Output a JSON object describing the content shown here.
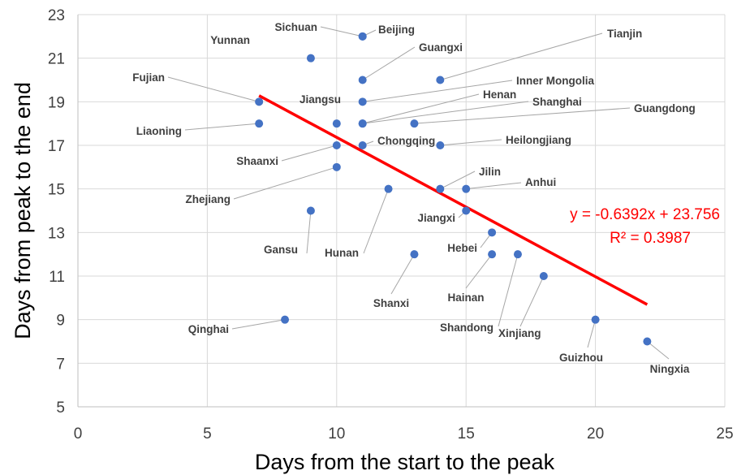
{
  "chart_data": {
    "type": "scatter",
    "xlabel": "Days from the start to the peak",
    "ylabel": "Days from peak to the end",
    "xlim": [
      0,
      25
    ],
    "ylim": [
      5,
      23
    ],
    "x_ticks": [
      "0",
      "5",
      "10",
      "15",
      "20",
      "25"
    ],
    "y_ticks": [
      "5",
      "7",
      "9",
      "11",
      "13",
      "15",
      "17",
      "19",
      "21",
      "23"
    ],
    "grid": true,
    "colors": {
      "points": "#4472c4",
      "trendline": "#ff0000"
    },
    "points": [
      {
        "label": "Sichuan",
        "x": 11,
        "y": 22
      },
      {
        "label": "Beijing",
        "x": 11,
        "y": 22
      },
      {
        "label": "Yunnan",
        "x": 9,
        "y": 21
      },
      {
        "label": "Tianjin",
        "x": 14,
        "y": 20
      },
      {
        "label": "Guangxi",
        "x": 11,
        "y": 20
      },
      {
        "label": "Fujian",
        "x": 7,
        "y": 19
      },
      {
        "label": "Inner Mongolia",
        "x": 11,
        "y": 19
      },
      {
        "label": "Jiangsu",
        "x": 10,
        "y": 18
      },
      {
        "label": "Henan",
        "x": 11,
        "y": 18
      },
      {
        "label": "Shanghai",
        "x": 11,
        "y": 18
      },
      {
        "label": "Guangdong",
        "x": 13,
        "y": 18
      },
      {
        "label": "Liaoning",
        "x": 7,
        "y": 18
      },
      {
        "label": "Shaanxi",
        "x": 10,
        "y": 17
      },
      {
        "label": "Chongqing",
        "x": 11,
        "y": 17
      },
      {
        "label": "Heilongjiang",
        "x": 14,
        "y": 17
      },
      {
        "label": "Zhejiang",
        "x": 10,
        "y": 16
      },
      {
        "label": "Jilin",
        "x": 14,
        "y": 15
      },
      {
        "label": "Anhui",
        "x": 15,
        "y": 15
      },
      {
        "label": "Hunan",
        "x": 12,
        "y": 15
      },
      {
        "label": "Gansu",
        "x": 9,
        "y": 14
      },
      {
        "label": "Jiangxi",
        "x": 15,
        "y": 14
      },
      {
        "label": "Hebei",
        "x": 16,
        "y": 13
      },
      {
        "label": "Shanxi",
        "x": 13,
        "y": 12
      },
      {
        "label": "Hainan",
        "x": 16,
        "y": 12
      },
      {
        "label": "Shandong",
        "x": 17,
        "y": 12
      },
      {
        "label": "Xinjiang",
        "x": 18,
        "y": 11
      },
      {
        "label": "Qinghai",
        "x": 8,
        "y": 9
      },
      {
        "label": "Guizhou",
        "x": 20,
        "y": 9
      },
      {
        "label": "Ningxia",
        "x": 22,
        "y": 8
      }
    ],
    "trendline": {
      "type": "linear",
      "slope": -0.6392,
      "intercept": 23.756,
      "x_range": [
        7,
        22
      ],
      "equation": "y = -0.6392x + 23.756",
      "r_squared": "R² = 0.3987"
    }
  }
}
